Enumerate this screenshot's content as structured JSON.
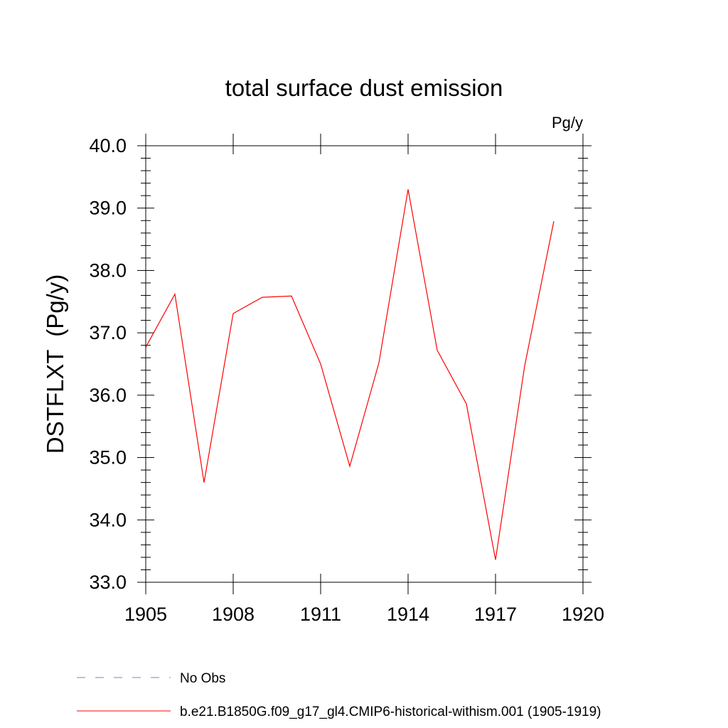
{
  "chart_data": {
    "type": "line",
    "title": "total surface dust emission",
    "units_label": "Pg/y",
    "ylabel": "DSTFLXT  (Pg/y)",
    "xlabel": "",
    "xlim": [
      1905,
      1920
    ],
    "ylim": [
      33.0,
      40.0
    ],
    "x_ticks": [
      1905,
      1908,
      1911,
      1914,
      1917,
      1920
    ],
    "x_tick_labels": [
      "1905",
      "1908",
      "1911",
      "1914",
      "1917",
      "1920"
    ],
    "y_ticks": [
      33.0,
      34.0,
      35.0,
      36.0,
      37.0,
      38.0,
      39.0,
      40.0
    ],
    "y_tick_labels": [
      "33.0",
      "34.0",
      "35.0",
      "36.0",
      "37.0",
      "38.0",
      "39.0",
      "40.0"
    ],
    "grid": false,
    "legend_position": "bottom-left",
    "series": [
      {
        "name": "b.e21.B1850G.f09_g17_gl4.CMIP6-historical-withism.001 (1905-1919)",
        "color": "#ff0000",
        "style": "solid",
        "x": [
          1905,
          1906,
          1907,
          1908,
          1909,
          1910,
          1911,
          1912,
          1913,
          1914,
          1915,
          1916,
          1917,
          1918,
          1919
        ],
        "values": [
          36.77,
          37.62,
          34.6,
          37.31,
          37.57,
          37.59,
          36.5,
          34.86,
          36.52,
          39.3,
          36.72,
          35.86,
          33.36,
          36.47,
          38.79
        ]
      }
    ],
    "legend": [
      {
        "label": "No Obs",
        "color": "#7f7fcc",
        "style": "dashed"
      },
      {
        "label": "b.e21.B1850G.f09_g17_gl4.CMIP6-historical-withism.001 (1905-1919)",
        "color": "#ff0000",
        "style": "solid"
      }
    ]
  }
}
